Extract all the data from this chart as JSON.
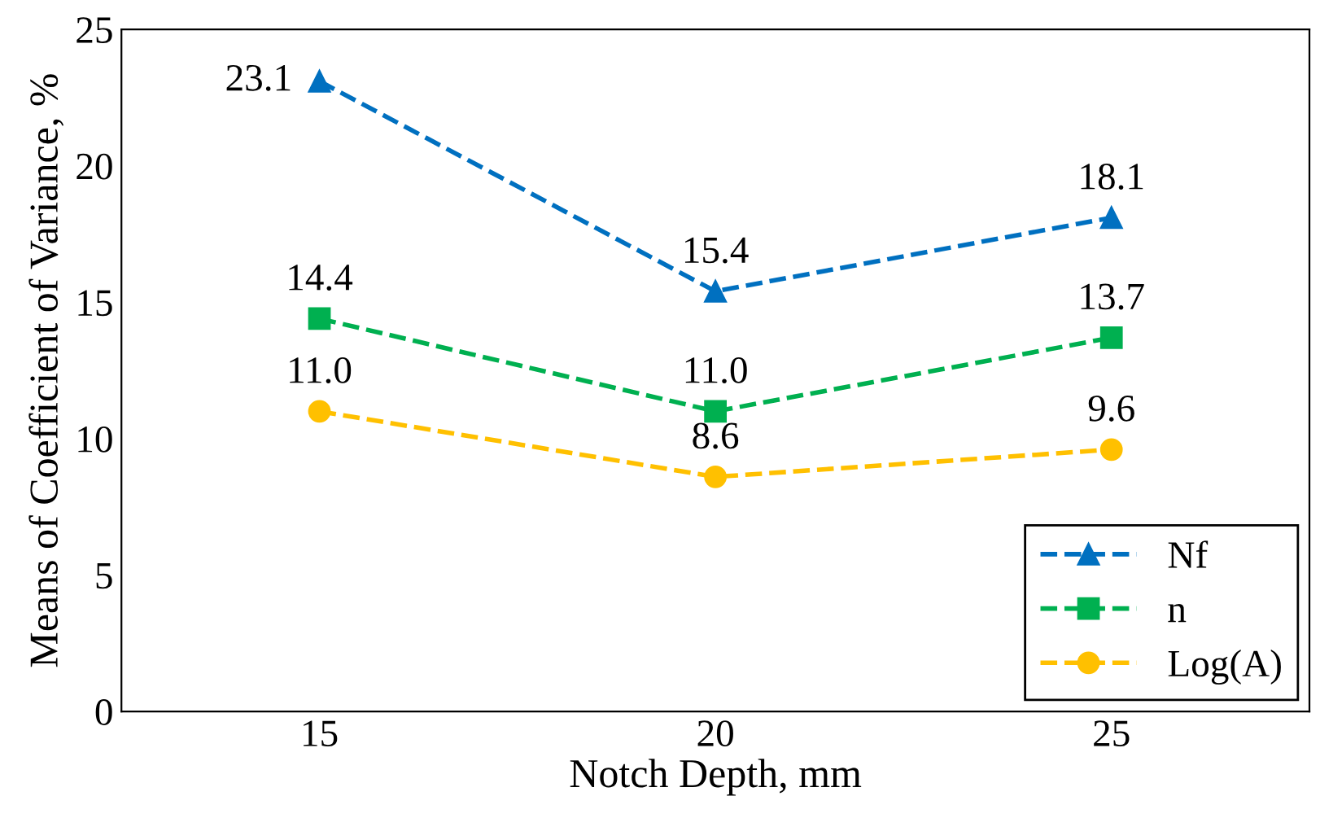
{
  "chart_data": {
    "type": "line",
    "xlabel": "Notch Depth, mm",
    "ylabel": "Means of Coefficient of Variance, %",
    "categories": [
      "15",
      "20",
      "25"
    ],
    "series": [
      {
        "name": "Nf",
        "color": "#0070c0",
        "marker": "triangle",
        "values": [
          23.1,
          15.4,
          18.1
        ],
        "value_labels": [
          "23.1",
          "15.4",
          "18.1"
        ]
      },
      {
        "name": "n",
        "color": "#00b050",
        "marker": "square",
        "values": [
          14.4,
          11.0,
          13.7
        ],
        "value_labels": [
          "14.4",
          "11.0",
          "13.7"
        ]
      },
      {
        "name": "Log(A)",
        "color": "#ffc000",
        "marker": "circle",
        "values": [
          11.0,
          8.6,
          9.6
        ],
        "value_labels": [
          "11.0",
          "8.6",
          "9.6"
        ]
      }
    ],
    "line_style": "dashed",
    "ylim": [
      0,
      25
    ],
    "yticks": [
      0,
      5,
      10,
      15,
      20,
      25
    ],
    "grid": false,
    "legend": "bottom right"
  }
}
